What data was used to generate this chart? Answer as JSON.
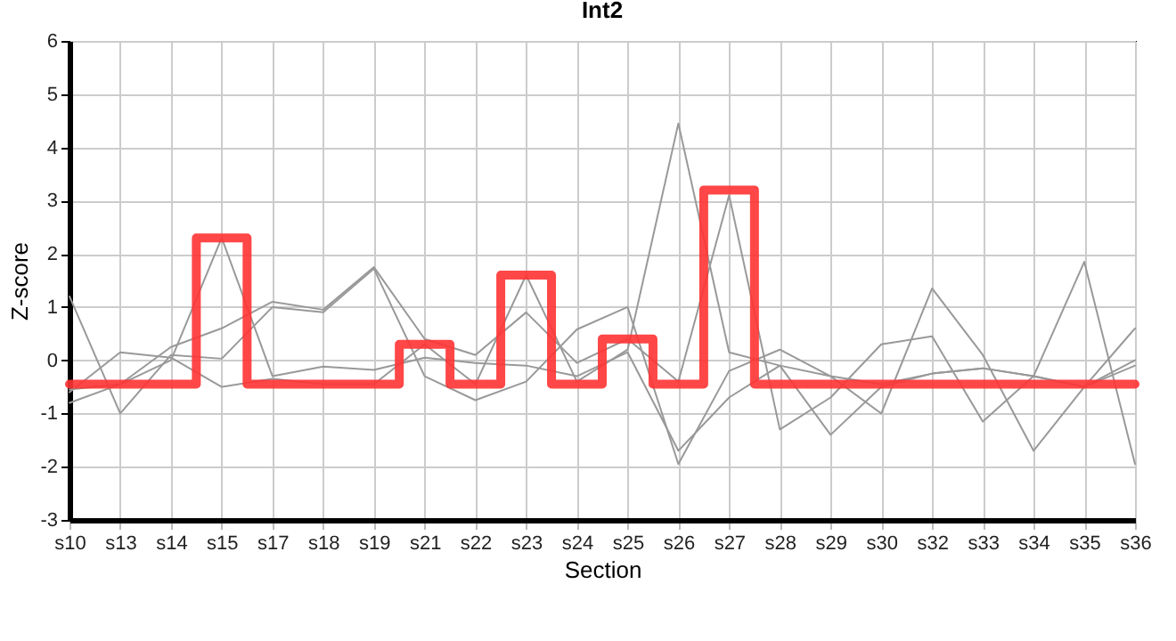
{
  "chart_data": {
    "type": "line",
    "title": "Int2",
    "xlabel": "Section",
    "ylabel": "Z-score",
    "categories": [
      "s10",
      "s13",
      "s14",
      "s15",
      "s17",
      "s18",
      "s19",
      "s21",
      "s22",
      "s23",
      "s24",
      "s25",
      "s26",
      "s27",
      "s28",
      "s29",
      "s30",
      "s32",
      "s33",
      "s34",
      "s35",
      "s36"
    ],
    "ylim": [
      -3,
      6
    ],
    "yticks": [
      -3,
      -2,
      -1,
      0,
      1,
      2,
      3,
      4,
      5,
      6
    ],
    "grid": true,
    "series": [
      {
        "color": "#999999",
        "values": [
          -0.8,
          -0.45,
          0.0,
          2.3,
          -0.3,
          -0.12,
          -0.18,
          0.05,
          -0.05,
          -0.1,
          -0.3,
          0.15,
          -1.7,
          -0.7,
          -0.1,
          -0.3,
          -0.45,
          -0.25,
          -0.15,
          -0.3,
          -0.5,
          0.0
        ]
      },
      {
        "color": "#999999",
        "values": [
          1.2,
          -1.0,
          0.1,
          0.03,
          1.0,
          0.9,
          1.72,
          -0.3,
          -0.75,
          -0.4,
          0.58,
          1.0,
          -1.95,
          -0.2,
          0.2,
          -0.3,
          -1.0,
          1.35,
          0.1,
          -1.7,
          -0.5,
          0.6
        ]
      },
      {
        "color": "#999999",
        "values": [
          -0.55,
          -0.45,
          0.25,
          0.6,
          1.1,
          0.95,
          1.75,
          0.4,
          0.1,
          0.9,
          -0.05,
          0.4,
          -0.4,
          3.1,
          -1.3,
          -0.7,
          0.3,
          0.45,
          -1.15,
          -0.3,
          1.85,
          -1.95
        ]
      },
      {
        "color": "#999999",
        "values": [
          -0.6,
          0.15,
          0.05,
          -0.5,
          -0.35,
          -0.45,
          -0.45,
          0.3,
          -0.45,
          1.6,
          -0.4,
          0.2,
          4.45,
          0.15,
          -0.1,
          -1.4,
          -0.5,
          -0.25,
          -0.15,
          -0.3,
          -0.5,
          -0.1
        ]
      },
      {
        "type": "step",
        "color": "#ff3333",
        "values": [
          -0.45,
          -0.45,
          -0.45,
          2.3,
          -0.45,
          -0.45,
          -0.45,
          0.3,
          -0.45,
          1.6,
          -0.45,
          0.4,
          -0.45,
          3.2,
          -0.45,
          -0.45,
          -0.45,
          -0.45,
          -0.45,
          -0.45,
          -0.45,
          -0.45
        ]
      }
    ]
  }
}
